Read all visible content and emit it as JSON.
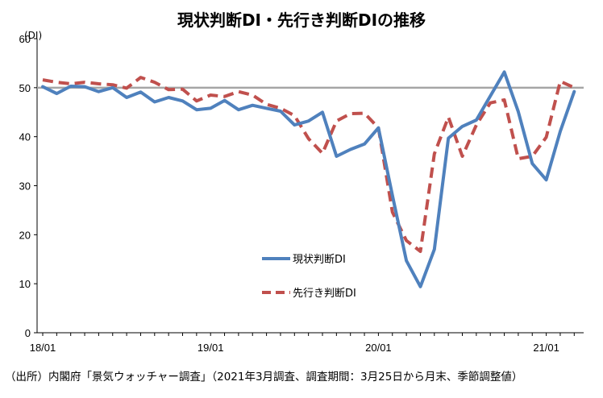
{
  "chart_data": {
    "type": "line",
    "title": "現状判断DI・先行き判断DIの推移",
    "ylabel": "(DI)",
    "ylim": [
      0,
      60
    ],
    "yticks": [
      0,
      10,
      20,
      30,
      40,
      50,
      60
    ],
    "x_tick_labels": [
      "18/01",
      "19/01",
      "20/01",
      "21/01"
    ],
    "reference_line": 50,
    "grid": false,
    "legend_placement": "center-bottom",
    "x": [
      "18/01",
      "18/02",
      "18/03",
      "18/04",
      "18/05",
      "18/06",
      "18/07",
      "18/08",
      "18/09",
      "18/10",
      "18/11",
      "18/12",
      "19/01",
      "19/02",
      "19/03",
      "19/04",
      "19/05",
      "19/06",
      "19/07",
      "19/08",
      "19/09",
      "19/10",
      "19/11",
      "19/12",
      "20/01",
      "20/02",
      "20/03",
      "20/04",
      "20/05",
      "20/06",
      "20/07",
      "20/08",
      "20/09",
      "20/10",
      "20/11",
      "20/12",
      "21/01",
      "21/02",
      "21/03"
    ],
    "series": [
      {
        "name": "現状判断DI",
        "color": "#4f81bd",
        "style": "solid",
        "values": [
          50.2,
          48.8,
          50.3,
          50.2,
          49.2,
          50.0,
          48.0,
          49.1,
          47.1,
          48.0,
          47.3,
          45.5,
          45.8,
          47.4,
          45.5,
          46.4,
          45.8,
          45.2,
          42.4,
          43.2,
          45.0,
          36.0,
          37.4,
          38.5,
          41.8,
          28.0,
          14.7,
          9.4,
          17.0,
          39.7,
          42.1,
          43.4,
          48.3,
          53.2,
          45.1,
          34.5,
          31.2,
          41.1,
          49.2
        ]
      },
      {
        "name": "先行き判断DI",
        "color": "#c0504d",
        "style": "dashed",
        "values": [
          51.6,
          51.1,
          50.8,
          51.1,
          50.8,
          50.6,
          49.9,
          52.1,
          51.1,
          49.6,
          49.7,
          47.3,
          48.5,
          48.2,
          49.2,
          48.5,
          46.6,
          45.8,
          44.3,
          39.6,
          36.6,
          43.2,
          44.7,
          44.8,
          41.8,
          24.6,
          18.8,
          16.6,
          36.5,
          44.0,
          36.0,
          42.4,
          46.9,
          47.5,
          35.5,
          36.0,
          39.9,
          51.3,
          50.0
        ]
      }
    ]
  },
  "source_note": "（出所）内閣府「景気ウォッチャー調査」（2021年3月調査、調査期間：3月25日から月末、季節調整値）"
}
